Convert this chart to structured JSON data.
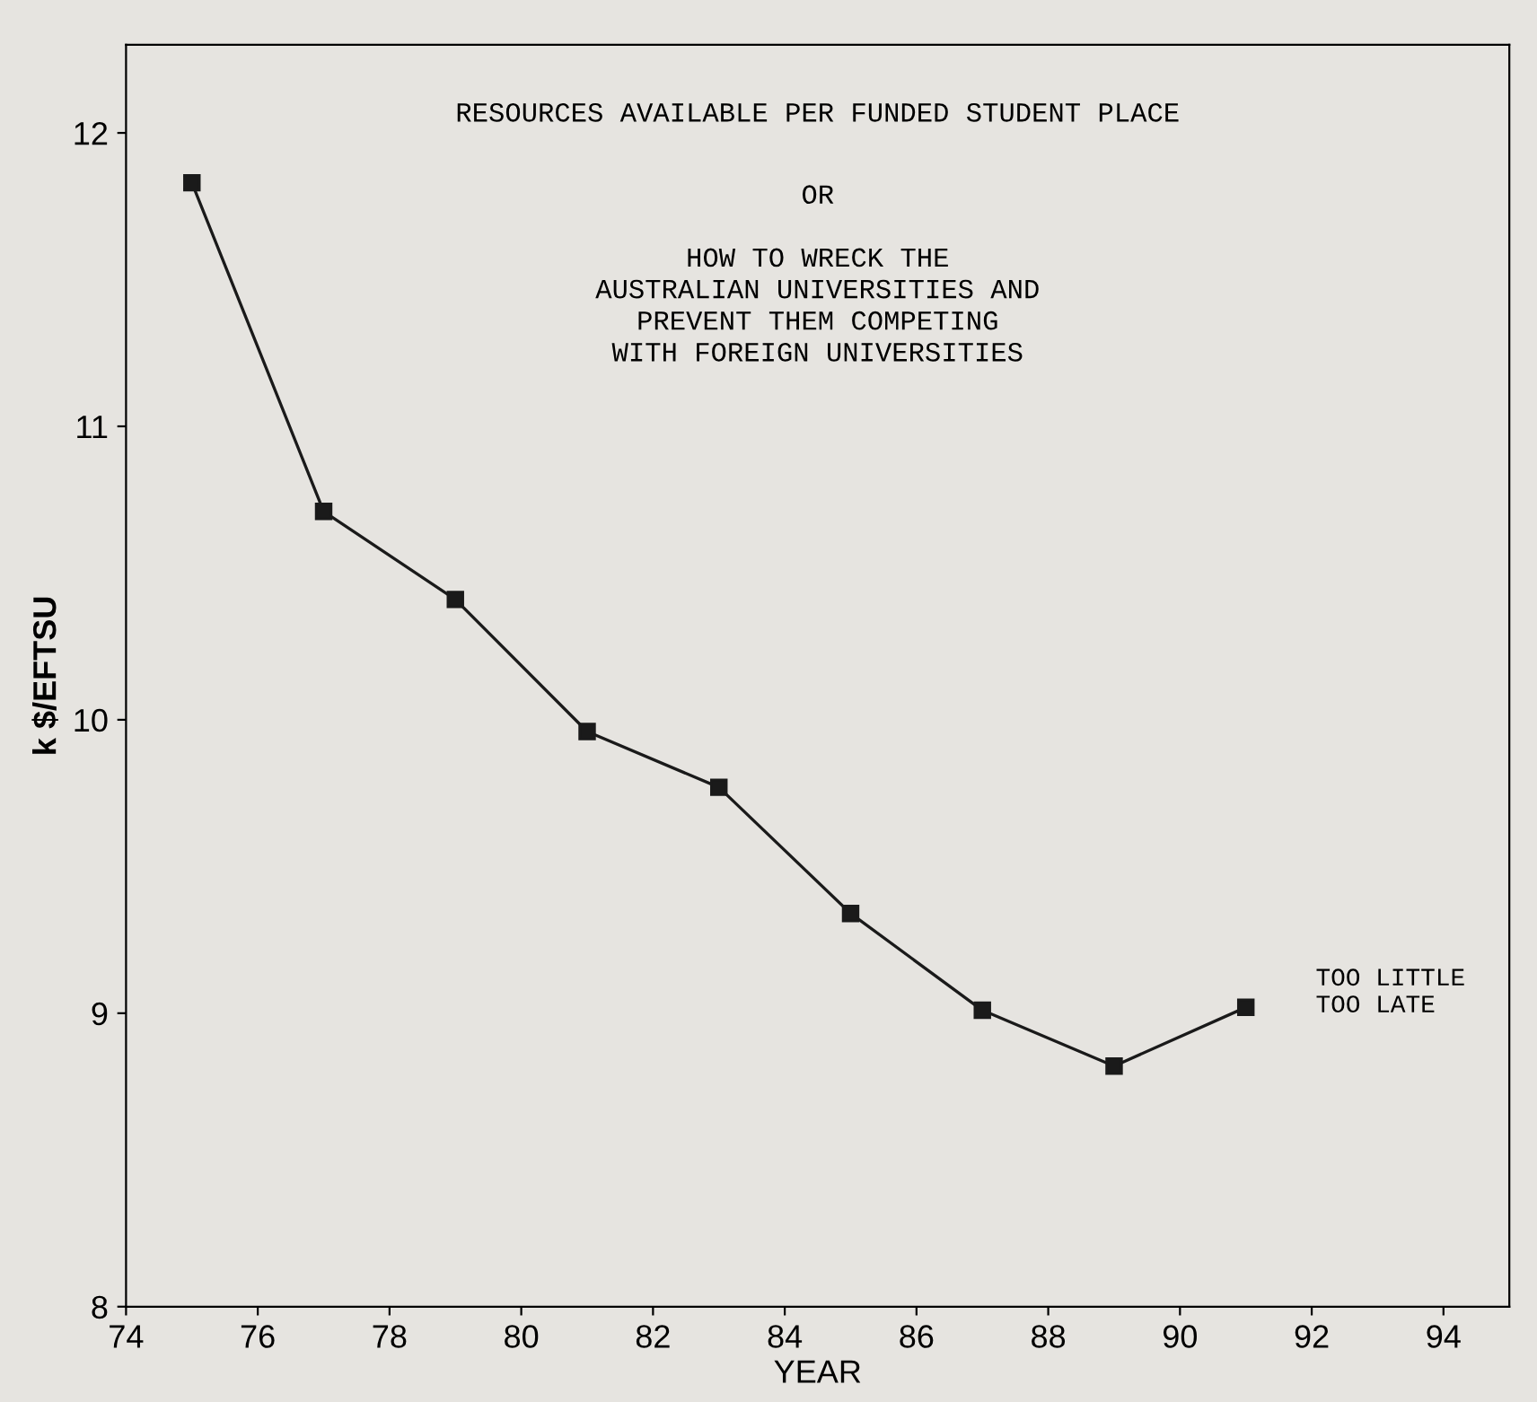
{
  "chart_data": {
    "type": "line",
    "title": "RESOURCES AVAILABLE PER FUNDED STUDENT PLACE",
    "subtitle": "OR\n\nHOW TO WRECK THE\nAUSTRALIAN UNIVERSITIES AND\nPREVENT THEM COMPETING\nWITH FOREIGN UNIVERSITIES",
    "xlabel": "YEAR",
    "ylabel": "k $/EFTSU",
    "x": [
      75,
      77,
      79,
      81,
      83,
      85,
      87,
      89,
      91
    ],
    "series": [
      {
        "color": "#1a1a1a",
        "values": [
          11.83,
          10.71,
          10.41,
          9.96,
          9.77,
          9.34,
          9.01,
          8.82,
          9.02
        ]
      }
    ],
    "annotations": [
      "TOO LITTLE\nTOO LATE"
    ],
    "xlim": [
      74,
      95
    ],
    "xticks": [
      74,
      76,
      78,
      80,
      82,
      84,
      86,
      88,
      90,
      92,
      94
    ],
    "ylim": [
      8,
      12.3
    ],
    "yticks": [
      8,
      9,
      10,
      11,
      12
    ],
    "grid": false,
    "legend": false,
    "marker": "square",
    "line_style": "solid"
  }
}
